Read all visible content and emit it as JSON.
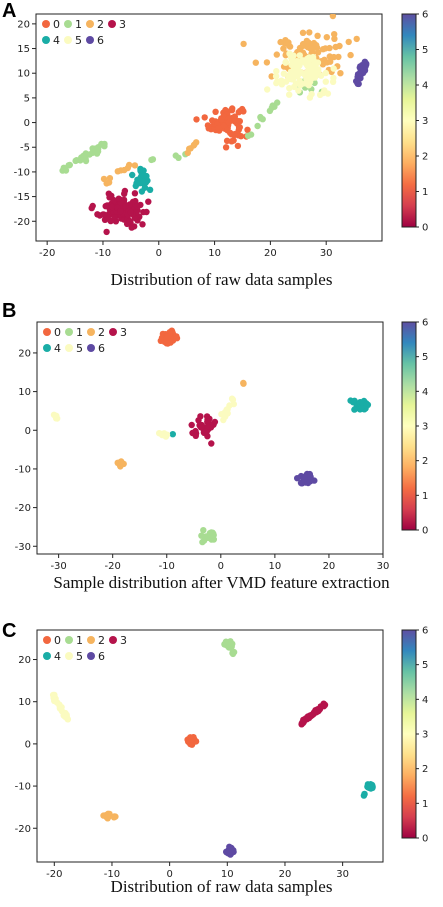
{
  "colors": {
    "c0": "#f2673f",
    "c1": "#a8dc92",
    "c2": "#f6b45f",
    "c3": "#b5134b",
    "c4": "#1aada6",
    "c5": "#fbfbc0",
    "c6": "#5e4aa3"
  },
  "colorbar": {
    "ticks": [
      0,
      1,
      2,
      3,
      4,
      5,
      6
    ]
  },
  "panels": [
    {
      "letter": "A",
      "caption": "Distribution of raw data samples",
      "chart_data": {
        "type": "scatter",
        "xlim": [
          -22,
          40
        ],
        "ylim": [
          -24,
          22
        ],
        "xticks": [
          -20,
          -10,
          0,
          10,
          20,
          30
        ],
        "yticks": [
          -20,
          -15,
          -10,
          -5,
          0,
          5,
          10,
          15,
          20
        ],
        "legend": [
          "0",
          "1",
          "2",
          "3",
          "4",
          "5",
          "6"
        ],
        "clusters": [
          {
            "label": "0",
            "shape": "blob",
            "cx": 12,
            "cy": 0,
            "rx": 3,
            "ry": 3.5,
            "n": 90
          },
          {
            "label": "1",
            "shape": "line",
            "x1": -18,
            "y1": -10,
            "x2": -9,
            "y2": -4,
            "spread": 0.7,
            "n": 30
          },
          {
            "label": "1",
            "shape": "line",
            "x1": 16,
            "y1": -3,
            "x2": 22,
            "y2": 5,
            "spread": 0.5,
            "n": 12
          },
          {
            "label": "1",
            "shape": "blob",
            "cx": 27,
            "cy": 7,
            "rx": 2,
            "ry": 1.5,
            "n": 8
          },
          {
            "label": "1",
            "shape": "line",
            "x1": -2,
            "y1": -8,
            "x2": 6,
            "y2": -6,
            "spread": 0.5,
            "n": 5
          },
          {
            "label": "2",
            "shape": "blob",
            "cx": 27,
            "cy": 14,
            "rx": 7,
            "ry": 5,
            "n": 85
          },
          {
            "label": "2",
            "shape": "line",
            "x1": -11,
            "y1": -14,
            "x2": -5,
            "y2": -8,
            "spread": 0.8,
            "n": 10
          },
          {
            "label": "2",
            "shape": "line",
            "x1": 5,
            "y1": -6,
            "x2": 9,
            "y2": -1,
            "spread": 0.5,
            "n": 6
          },
          {
            "label": "3",
            "shape": "blob",
            "cx": -6.5,
            "cy": -18,
            "rx": 4,
            "ry": 3,
            "n": 110
          },
          {
            "label": "4",
            "shape": "blob",
            "cx": -3,
            "cy": -11.5,
            "rx": 1.2,
            "ry": 2,
            "n": 35
          },
          {
            "label": "5",
            "shape": "blob",
            "cx": 26,
            "cy": 10,
            "rx": 5,
            "ry": 4,
            "n": 110
          },
          {
            "label": "6",
            "shape": "line",
            "x1": 35.5,
            "y1": 8,
            "x2": 37,
            "y2": 12,
            "spread": 0.5,
            "n": 40
          }
        ]
      }
    },
    {
      "letter": "B",
      "caption": "Sample distribution after VMD feature extraction",
      "chart_data": {
        "type": "scatter",
        "xlim": [
          -34,
          30
        ],
        "ylim": [
          -32,
          28
        ],
        "xticks": [
          -30,
          -20,
          -10,
          0,
          10,
          20,
          30
        ],
        "yticks": [
          -30,
          -20,
          -10,
          0,
          10,
          20
        ],
        "legend": [
          "0",
          "1",
          "2",
          "3",
          "4",
          "5",
          "6"
        ],
        "clusters": [
          {
            "label": "0",
            "shape": "blob",
            "cx": -9.5,
            "cy": 24,
            "rx": 1.5,
            "ry": 1.5,
            "n": 40
          },
          {
            "label": "1",
            "shape": "blob",
            "cx": -2,
            "cy": -27.5,
            "rx": 1.3,
            "ry": 1.5,
            "n": 20
          },
          {
            "label": "2",
            "shape": "blob",
            "cx": -18.5,
            "cy": -8.5,
            "rx": 0.7,
            "ry": 0.7,
            "n": 10
          },
          {
            "label": "2",
            "shape": "blob",
            "cx": 4,
            "cy": 12,
            "rx": 0.4,
            "ry": 0.4,
            "n": 2
          },
          {
            "label": "3",
            "shape": "blob",
            "cx": -3,
            "cy": 1,
            "rx": 2,
            "ry": 2.5,
            "n": 40
          },
          {
            "label": "4",
            "shape": "blob",
            "cx": 26,
            "cy": 6.5,
            "rx": 1.5,
            "ry": 1.3,
            "n": 40
          },
          {
            "label": "4",
            "shape": "blob",
            "cx": -9,
            "cy": -1,
            "rx": 0.3,
            "ry": 0.3,
            "n": 1
          },
          {
            "label": "5",
            "shape": "blob",
            "cx": -30.5,
            "cy": 4,
            "rx": 1,
            "ry": 1,
            "n": 5
          },
          {
            "label": "5",
            "shape": "blob",
            "cx": -10.5,
            "cy": -1,
            "rx": 1,
            "ry": 0.5,
            "n": 6
          },
          {
            "label": "5",
            "shape": "line",
            "x1": 0,
            "y1": 3,
            "x2": 3,
            "y2": 9,
            "spread": 0.5,
            "n": 12
          },
          {
            "label": "6",
            "shape": "blob",
            "cx": 16,
            "cy": -12.5,
            "rx": 1.2,
            "ry": 1.5,
            "n": 25
          }
        ]
      }
    },
    {
      "letter": "C",
      "caption": "Distribution of raw data samples",
      "chart_data": {
        "type": "scatter",
        "xlim": [
          -23,
          37
        ],
        "ylim": [
          -28,
          27
        ],
        "xticks": [
          -20,
          -10,
          0,
          10,
          20,
          30
        ],
        "yticks": [
          -20,
          -10,
          0,
          10,
          20
        ],
        "legend": [
          "0",
          "1",
          "2",
          "3",
          "4",
          "5",
          "6"
        ],
        "clusters": [
          {
            "label": "0",
            "shape": "blob",
            "cx": 3.8,
            "cy": 0.8,
            "rx": 0.7,
            "ry": 0.8,
            "n": 40
          },
          {
            "label": "1",
            "shape": "blob",
            "cx": 10.2,
            "cy": 23.5,
            "rx": 0.6,
            "ry": 0.8,
            "n": 40
          },
          {
            "label": "1",
            "shape": "blob",
            "cx": 11,
            "cy": 21.5,
            "rx": 0.3,
            "ry": 0.4,
            "n": 5
          },
          {
            "label": "2",
            "shape": "blob",
            "cx": -10.8,
            "cy": -17,
            "rx": 0.5,
            "ry": 0.4,
            "n": 12
          },
          {
            "label": "2",
            "shape": "blob",
            "cx": -9.5,
            "cy": -17.3,
            "rx": 0.2,
            "ry": 0.3,
            "n": 3
          },
          {
            "label": "3",
            "shape": "line",
            "x1": 22.5,
            "y1": 4.5,
            "x2": 27,
            "y2": 9.5,
            "spread": 0.3,
            "n": 50
          },
          {
            "label": "4",
            "shape": "blob",
            "cx": 34.8,
            "cy": -10,
            "rx": 0.5,
            "ry": 0.6,
            "n": 30
          },
          {
            "label": "4",
            "shape": "blob",
            "cx": 33.8,
            "cy": -12,
            "rx": 0.2,
            "ry": 0.3,
            "n": 3
          },
          {
            "label": "5",
            "shape": "line",
            "x1": -20.5,
            "y1": 12,
            "x2": -17.5,
            "y2": 5.5,
            "spread": 0.4,
            "n": 25
          },
          {
            "label": "6",
            "shape": "blob",
            "cx": 10.5,
            "cy": -25.5,
            "rx": 0.6,
            "ry": 0.7,
            "n": 40
          }
        ]
      }
    }
  ]
}
